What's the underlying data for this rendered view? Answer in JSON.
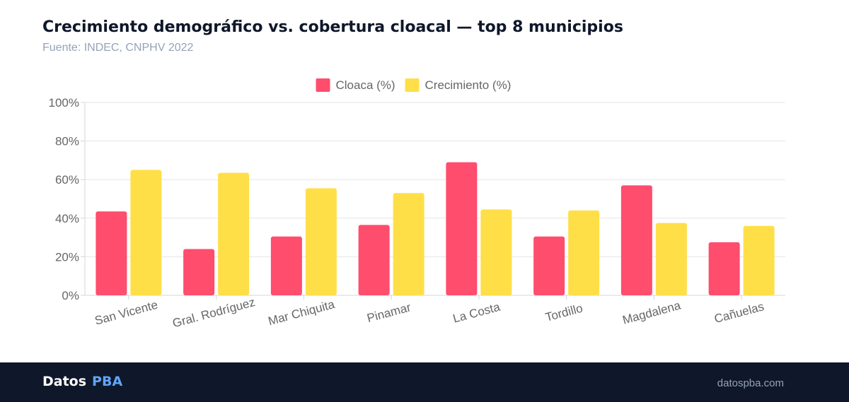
{
  "header": {
    "title": "Crecimiento demográfico vs. cobertura cloacal — top 8 municipios",
    "subtitle": "Fuente: INDEC, CNPHV 2022"
  },
  "footer": {
    "brand_primary": "Datos",
    "brand_secondary": "PBA",
    "site": "datospba.com"
  },
  "chart_data": {
    "type": "bar",
    "categories": [
      "San Vicente",
      "Gral. Rodríguez",
      "Mar Chiquita",
      "Pinamar",
      "La Costa",
      "Tordillo",
      "Magdalena",
      "Cañuelas"
    ],
    "series": [
      {
        "name": "Cloaca (%)",
        "color": "#ff4d6d",
        "values": [
          43.5,
          24,
          30.5,
          36.5,
          69,
          30.5,
          57,
          27.5
        ]
      },
      {
        "name": "Crecimiento (%)",
        "color": "#ffdf47",
        "values": [
          65,
          63.5,
          55.5,
          53,
          44.5,
          44,
          37.5,
          36
        ]
      }
    ],
    "ylim": [
      0,
      100
    ],
    "yticks": [
      "0%",
      "20%",
      "40%",
      "60%",
      "80%",
      "100%"
    ],
    "ytick_values": [
      0,
      20,
      40,
      60,
      80,
      100
    ],
    "grid": true,
    "legend": "top-center"
  }
}
